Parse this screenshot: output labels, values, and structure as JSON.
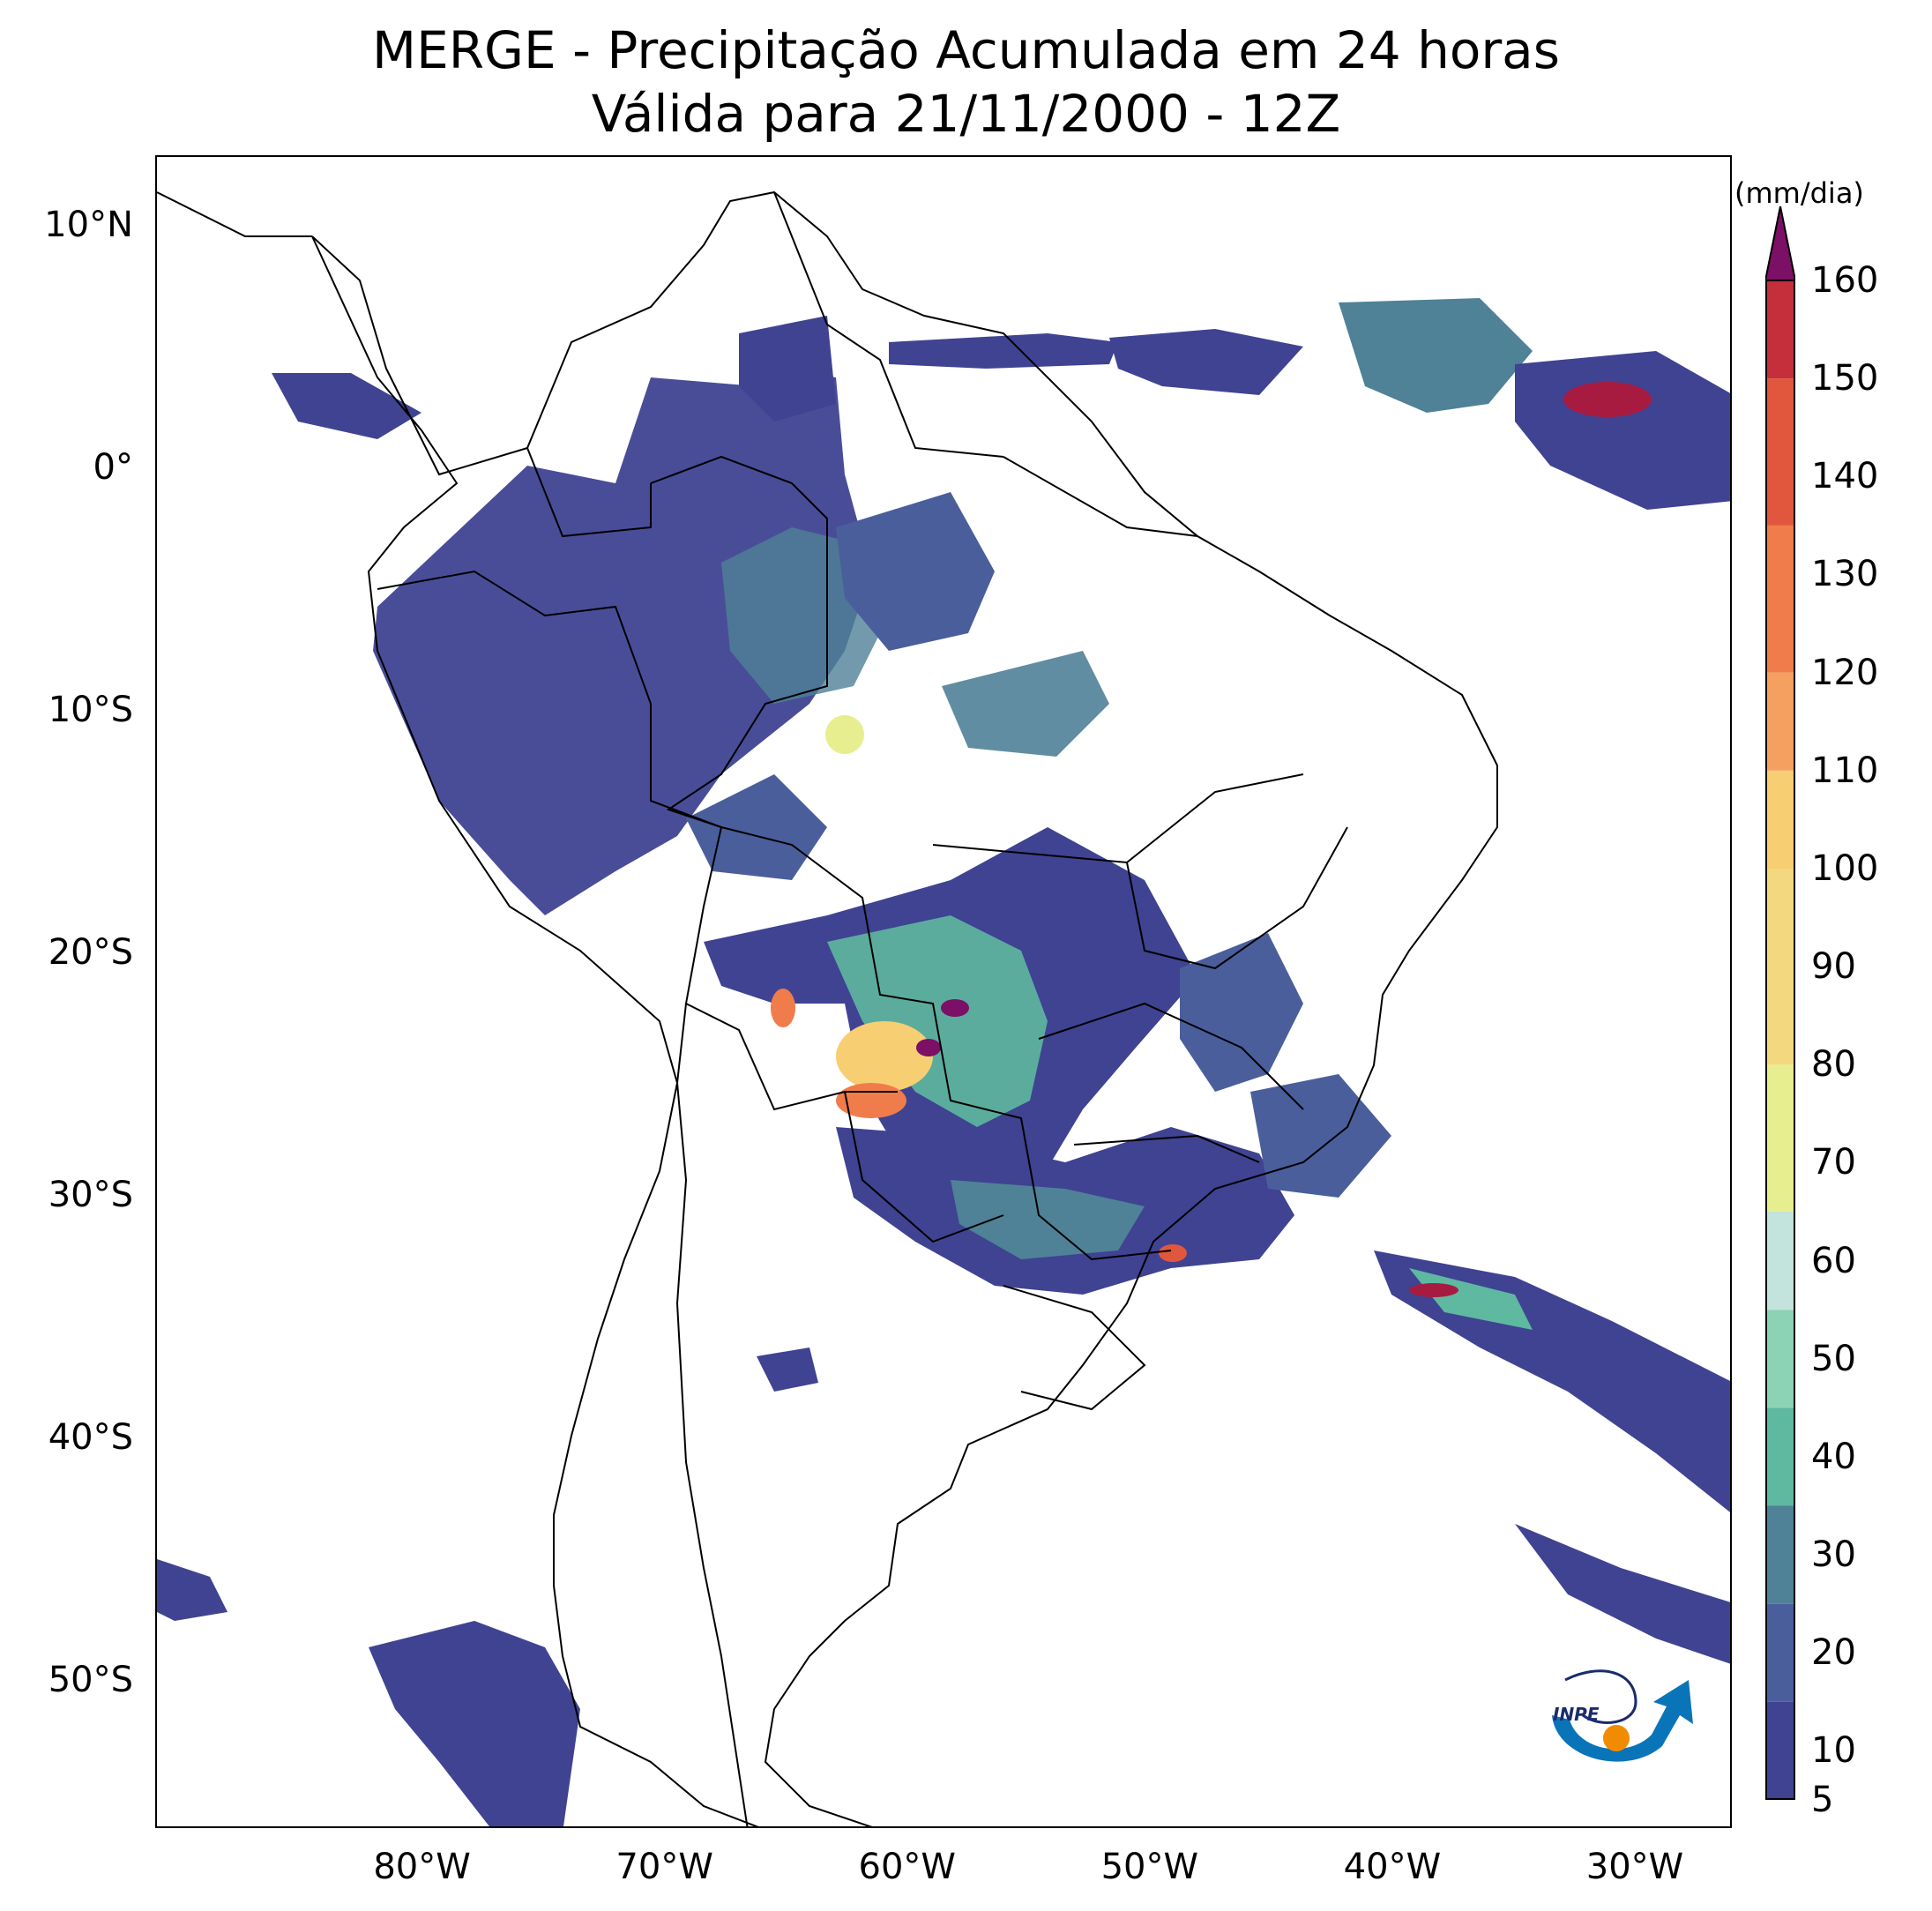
{
  "title": {
    "line1": "MERGE - Precipitação Acumulada em 24 horas",
    "line2": "Válida para 21/11/2000 - 12Z"
  },
  "map": {
    "extent": {
      "lon_min": -91,
      "lon_max": -26,
      "lat_min": -56,
      "lat_max": 13
    },
    "lat_ticks": [
      {
        "value": 10,
        "label": "10°N"
      },
      {
        "value": 0,
        "label": "0°"
      },
      {
        "value": -10,
        "label": "10°S"
      },
      {
        "value": -20,
        "label": "20°S"
      },
      {
        "value": -30,
        "label": "30°S"
      },
      {
        "value": -40,
        "label": "40°S"
      },
      {
        "value": -50,
        "label": "50°S"
      }
    ],
    "lon_ticks": [
      {
        "value": -80,
        "label": "80°W"
      },
      {
        "value": -70,
        "label": "70°W"
      },
      {
        "value": -60,
        "label": "60°W"
      },
      {
        "value": -50,
        "label": "50°W"
      },
      {
        "value": -40,
        "label": "40°W"
      },
      {
        "value": -30,
        "label": "30°W"
      }
    ]
  },
  "colorbar": {
    "unit": "(mm/dia)",
    "ticks": [
      "5",
      "10",
      "20",
      "30",
      "40",
      "50",
      "60",
      "70",
      "80",
      "90",
      "100",
      "110",
      "120",
      "130",
      "140",
      "150",
      "160"
    ],
    "min": 5,
    "max": 160,
    "extend": "max",
    "colors": {
      "5": "#3f4392",
      "15": "#4a5e9c",
      "25": "#4f8197",
      "35": "#5fb8a0",
      "45": "#8cd2b4",
      "55": "#c2e4dc",
      "65": "#e7ee8f",
      "80": "#f4d880",
      "100": "#f8ce72",
      "110": "#f5a061",
      "120": "#f07c4b",
      "135": "#e1573d",
      "150": "#c52f3c",
      "160": "#a81b40",
      "over": "#7c0f66"
    }
  },
  "logo": {
    "text": "INPE"
  }
}
